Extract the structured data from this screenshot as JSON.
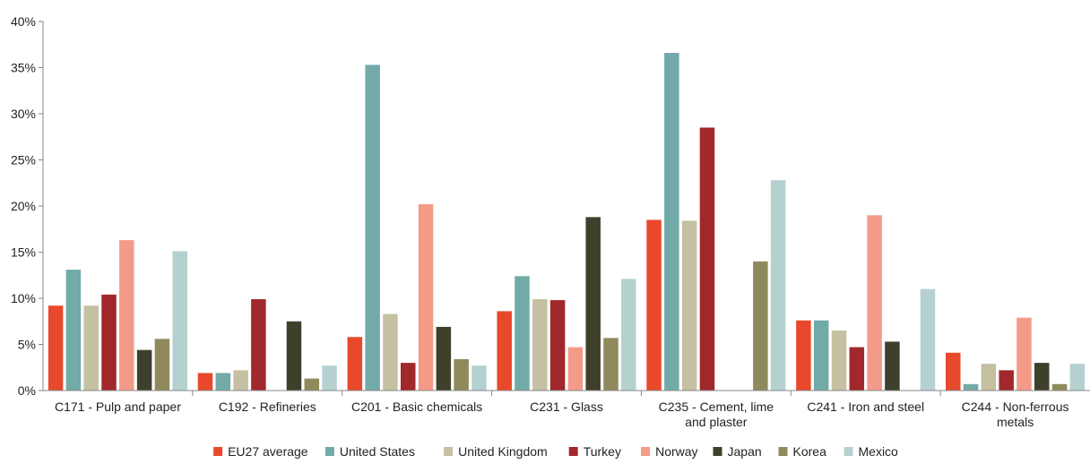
{
  "chart_data": {
    "type": "bar",
    "title": "",
    "xlabel": "",
    "ylabel": "",
    "ylim": [
      0,
      40
    ],
    "yticks": [
      "0%",
      "5%",
      "10%",
      "15%",
      "20%",
      "25%",
      "30%",
      "35%",
      "40%"
    ],
    "grid": false,
    "legend_position": "bottom",
    "categories": [
      [
        "C171 - Pulp and paper"
      ],
      [
        "C192 - Refineries"
      ],
      [
        "C201 - Basic chemicals"
      ],
      [
        "C231 - Glass"
      ],
      [
        "C235 - Cement, lime",
        "and plaster"
      ],
      [
        "C241 - Iron and steel"
      ],
      [
        "C244 - Non-ferrous",
        "metals"
      ]
    ],
    "series": [
      {
        "name": "EU27 average",
        "color": "#e8492c",
        "values": [
          9.2,
          1.9,
          5.8,
          8.6,
          18.5,
          7.6,
          4.1
        ]
      },
      {
        "name": "United States",
        "color": "#72aaa8",
        "values": [
          13.1,
          1.9,
          35.3,
          12.4,
          36.6,
          7.6,
          0.7
        ]
      },
      {
        "name": "United Kingdom",
        "color": "#c4c0a1",
        "values": [
          9.2,
          2.2,
          8.3,
          9.9,
          18.4,
          6.5,
          2.9
        ]
      },
      {
        "name": "Turkey",
        "color": "#a1282b",
        "values": [
          10.4,
          9.9,
          3.0,
          9.8,
          28.5,
          4.7,
          2.2
        ]
      },
      {
        "name": "Norway",
        "color": "#f39b88",
        "values": [
          16.3,
          0,
          20.2,
          4.7,
          0,
          19.0,
          7.9
        ]
      },
      {
        "name": "Japan",
        "color": "#3f402c",
        "values": [
          4.4,
          7.5,
          6.9,
          18.8,
          0,
          5.3,
          3.0
        ]
      },
      {
        "name": "Korea",
        "color": "#8e8a5c",
        "values": [
          5.6,
          1.3,
          3.4,
          5.7,
          14.0,
          0,
          0.7
        ]
      },
      {
        "name": "Mexico",
        "color": "#b5d1cf",
        "values": [
          15.1,
          2.7,
          2.7,
          12.1,
          22.8,
          11.0,
          2.9
        ]
      }
    ]
  }
}
